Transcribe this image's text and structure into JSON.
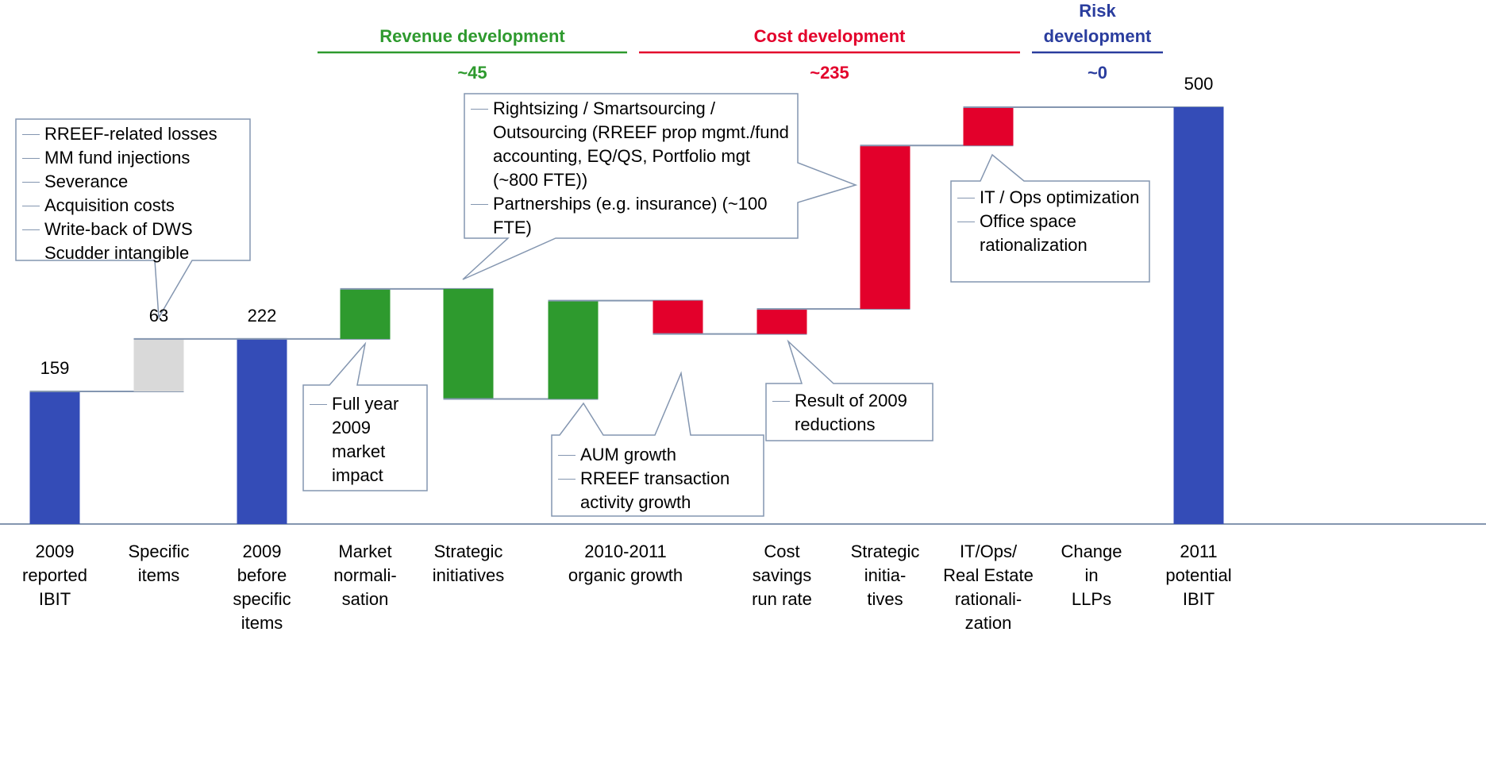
{
  "chart_data": {
    "type": "waterfall",
    "categories": [
      "2009\nreported\nIBIT",
      "Specific\nitems",
      "2009\nbefore\nspecific\nitems",
      "Market\nnormali-\nsation",
      "Strategic\ninitiatives",
      "2010-2011\norganic growth",
      null,
      "Cost\nsavings\nrun rate",
      "Strategic\ninitia-\ntives",
      "IT/Ops/\nReal Estate\nrationali-\nzation",
      "Change\nin\nLLPs",
      "2011\npotential\nIBIT"
    ],
    "values": [
      159,
      63,
      222,
      60,
      -132,
      118,
      -40,
      30,
      196,
      46,
      0,
      500
    ],
    "value_labels": [
      "159",
      "63",
      "222",
      null,
      null,
      null,
      null,
      null,
      null,
      null,
      null,
      "500"
    ],
    "kinds": [
      "total",
      "delta",
      "total",
      "delta",
      "delta",
      "delta",
      "delta",
      "delta",
      "delta",
      "delta",
      "delta",
      "total"
    ],
    "colors": [
      "#344cb7",
      "#d9d9d9",
      "#344cb7",
      "#2e9a2e",
      "#2e9a2e",
      "#2e9a2e",
      "#e3002b",
      "#e3002b",
      "#e3002b",
      "#e3002b",
      "#e3002b",
      "#344cb7"
    ],
    "groups": [
      {
        "title": "Revenue development",
        "total": "~45",
        "color": "#2e9a2e"
      },
      {
        "title": "Cost development",
        "total": "~235",
        "color": "#e3002b"
      },
      {
        "title": "Risk\ndevelopment",
        "total": "~0",
        "color": "#2a3d9e"
      }
    ],
    "callouts": [
      {
        "items": [
          "RREEF-related losses",
          "MM fund injections",
          "Severance",
          "Acquisition costs",
          "Write-back of DWS Scudder intangible"
        ]
      },
      {
        "items": [
          "Rightsizing / Smartsourcing / Outsourcing (RREEF prop mgmt./fund accounting, EQ/QS, Portfolio mgt (~800 FTE))",
          "Partnerships (e.g. insurance) (~100 FTE)"
        ]
      },
      {
        "items": [
          "IT / Ops optimization",
          "Office space rationalization"
        ]
      },
      {
        "items": [
          "Full year 2009 market impact"
        ]
      },
      {
        "items": [
          "AUM growth",
          "RREEF transaction activity growth"
        ]
      },
      {
        "items": [
          "Result of 2009 reductions"
        ]
      }
    ]
  }
}
